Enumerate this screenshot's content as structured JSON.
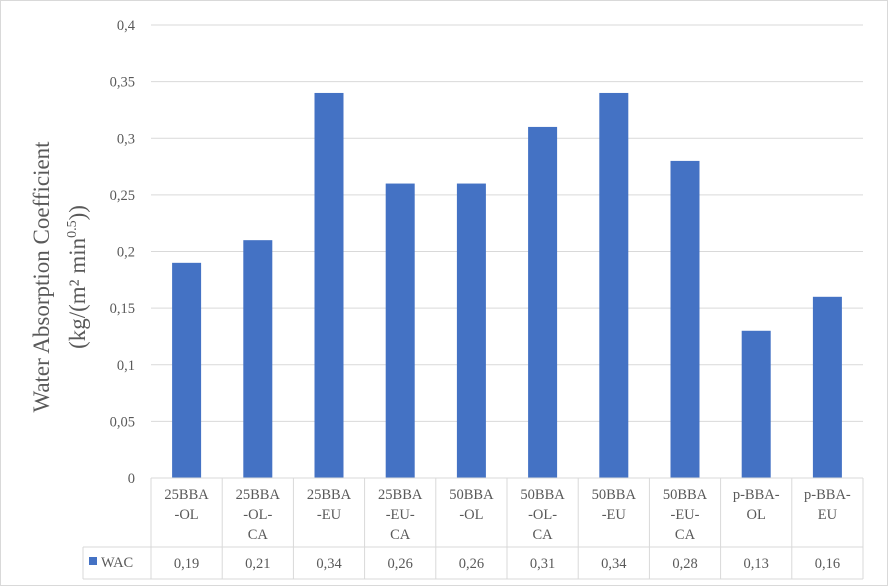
{
  "chart_data": {
    "type": "bar",
    "title": "",
    "xlabel": "",
    "ylabel": "Water Absorption Coefficient",
    "ylabel_line2_prefix": "(kg/(m² min",
    "ylabel_superscript": "0.5",
    "ylabel_line2_suffix": "))",
    "ylim": [
      0,
      0.4
    ],
    "ytick_step": 0.05,
    "yticks": [
      "0",
      "0,05",
      "0,1",
      "0,15",
      "0,2",
      "0,25",
      "0,3",
      "0,35",
      "0,4"
    ],
    "categories": [
      [
        "25BBA",
        "-OL"
      ],
      [
        "25BBA",
        "-OL-",
        "CA"
      ],
      [
        "25BBA",
        "-EU"
      ],
      [
        "25BBA",
        "-EU-",
        "CA"
      ],
      [
        "50BBA",
        "-OL"
      ],
      [
        "50BBA",
        "-OL-",
        "CA"
      ],
      [
        "50BBA",
        "-EU"
      ],
      [
        "50BBA",
        "-EU-",
        "CA"
      ],
      [
        "p-BBA-",
        "OL"
      ],
      [
        "p-BBA-",
        "EU"
      ]
    ],
    "series": [
      {
        "name": "WAC",
        "values": [
          0.19,
          0.21,
          0.34,
          0.26,
          0.26,
          0.31,
          0.34,
          0.28,
          0.13,
          0.16
        ],
        "value_labels": [
          "0,19",
          "0,21",
          "0,34",
          "0,26",
          "0,26",
          "0,31",
          "0,34",
          "0,28",
          "0,13",
          "0,16"
        ]
      }
    ],
    "grid": true,
    "legend": "data-table-left",
    "data_table": true
  },
  "colors": {
    "bar": "#4472c4",
    "grid": "#d9d9d9",
    "text": "#595959"
  }
}
